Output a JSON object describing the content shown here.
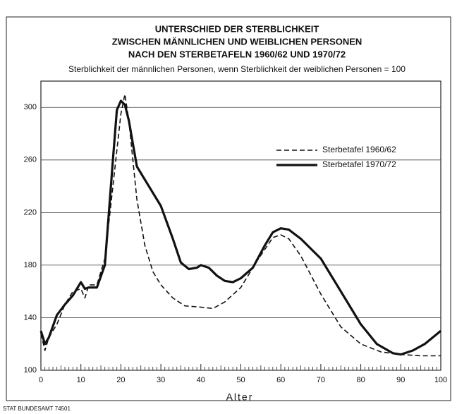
{
  "chart_data": {
    "type": "line",
    "title": [
      "UNTERSCHIED DER STERBLICHKEIT",
      "ZWISCHEN MÄNNLICHEN UND WEIBLICHEN PERSONEN",
      "NACH DEN STERBETAFELN 1960/62 UND 1970/72"
    ],
    "subtitle": "Sterblichkeit der männlichen Personen, wenn Sterblichkeit der weiblichen Personen = 100",
    "xlabel": "Alter",
    "source": "STAT BUNDESAMT 74501",
    "xlim": [
      0,
      100
    ],
    "xticks": [
      0,
      10,
      20,
      30,
      40,
      50,
      60,
      70,
      80,
      90,
      100
    ],
    "ylim": [
      100,
      320
    ],
    "yticks": [
      100,
      140,
      180,
      220,
      260,
      300
    ],
    "grid": true,
    "legend": "upper right",
    "series": [
      {
        "name": "Sterbetafel 1960/62",
        "color": "#111111",
        "line_style": "dashed",
        "x": [
          0,
          1,
          2,
          4,
          6,
          8,
          10,
          11,
          12,
          14,
          16,
          18,
          20,
          21,
          22,
          24,
          26,
          28,
          30,
          33,
          36,
          40,
          43,
          46,
          50,
          54,
          58,
          60,
          62,
          65,
          70,
          75,
          80,
          85,
          90,
          95,
          100
        ],
        "values": [
          128,
          115,
          125,
          135,
          150,
          160,
          162,
          155,
          165,
          165,
          185,
          240,
          295,
          310,
          290,
          230,
          195,
          175,
          165,
          155,
          149,
          148,
          147,
          152,
          163,
          183,
          201,
          203,
          200,
          187,
          158,
          133,
          120,
          114,
          112,
          111,
          111
        ]
      },
      {
        "name": "Sterbetafel 1970/72",
        "color": "#111111",
        "line_style": "solid",
        "x": [
          0,
          1,
          2,
          4,
          6,
          8,
          10,
          11,
          12,
          14,
          16,
          18,
          19,
          20,
          21,
          22,
          24,
          27,
          30,
          33,
          35,
          37,
          39,
          40,
          42,
          44,
          46,
          48,
          50,
          53,
          56,
          58,
          60,
          62,
          65,
          70,
          75,
          80,
          84,
          88,
          90,
          93,
          96,
          98,
          100
        ],
        "values": [
          130,
          120,
          125,
          142,
          150,
          157,
          167,
          162,
          163,
          163,
          180,
          260,
          298,
          305,
          302,
          290,
          255,
          240,
          225,
          200,
          182,
          177,
          178,
          180,
          178,
          172,
          168,
          167,
          170,
          178,
          195,
          205,
          208,
          207,
          200,
          185,
          160,
          135,
          120,
          113,
          112,
          115,
          120,
          125,
          130
        ]
      }
    ]
  }
}
